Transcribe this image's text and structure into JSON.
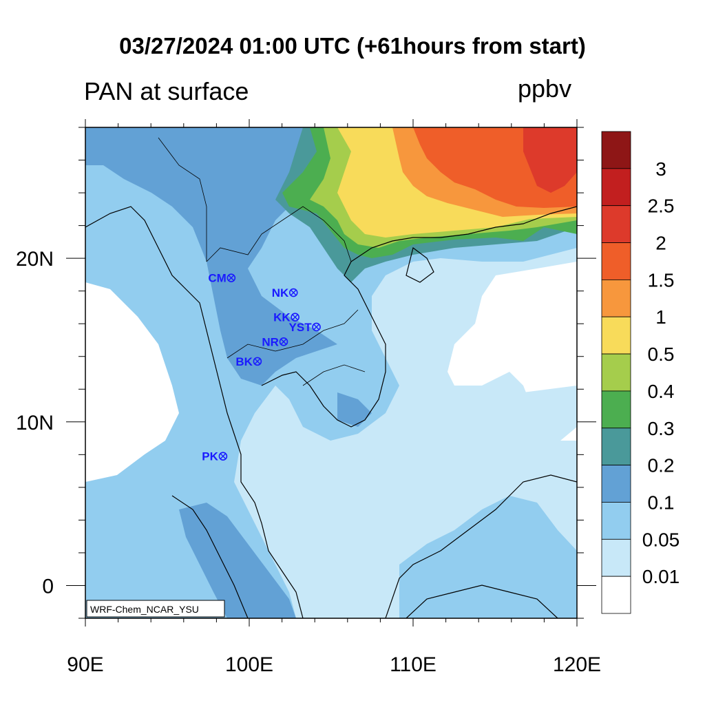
{
  "title": "03/27/2024 01:00 UTC (+61hours from start)",
  "subtitle": "PAN at surface",
  "units": "ppbv",
  "model_label": "WRF-Chem_NCAR_YSU",
  "x_axis": {
    "ticks": [
      "90E",
      "100E",
      "110E",
      "120E"
    ],
    "values": [
      90,
      100,
      110,
      120
    ],
    "range": [
      90,
      120
    ]
  },
  "y_axis": {
    "ticks": [
      "20N",
      "10N",
      "0"
    ],
    "values": [
      20,
      10,
      0
    ],
    "range": [
      -2,
      28
    ]
  },
  "colorbar": {
    "labels": [
      "3",
      "2.5",
      "2",
      "1.5",
      "1",
      "0.5",
      "0.4",
      "0.3",
      "0.2",
      "0.1",
      "0.05",
      "0.01"
    ],
    "colors": [
      "#8e1616",
      "#c21f1f",
      "#dd3a2b",
      "#ef5e29",
      "#f7973d",
      "#f8db5a",
      "#a5cd4c",
      "#4cae50",
      "#4a999a",
      "#62a1d5",
      "#92cdef",
      "#c8e8f8",
      "#ffffff"
    ]
  },
  "stations": [
    {
      "name": "CM",
      "lon": 98.9,
      "lat": 18.8
    },
    {
      "name": "NK",
      "lon": 102.7,
      "lat": 17.9
    },
    {
      "name": "KK",
      "lon": 102.8,
      "lat": 16.4
    },
    {
      "name": "YST",
      "lon": 104.1,
      "lat": 15.8
    },
    {
      "name": "NR",
      "lon": 102.1,
      "lat": 14.9
    },
    {
      "name": "BK",
      "lon": 100.5,
      "lat": 13.7
    },
    {
      "name": "PK",
      "lon": 98.4,
      "lat": 7.9
    }
  ],
  "station_color": "#1a1aff"
}
